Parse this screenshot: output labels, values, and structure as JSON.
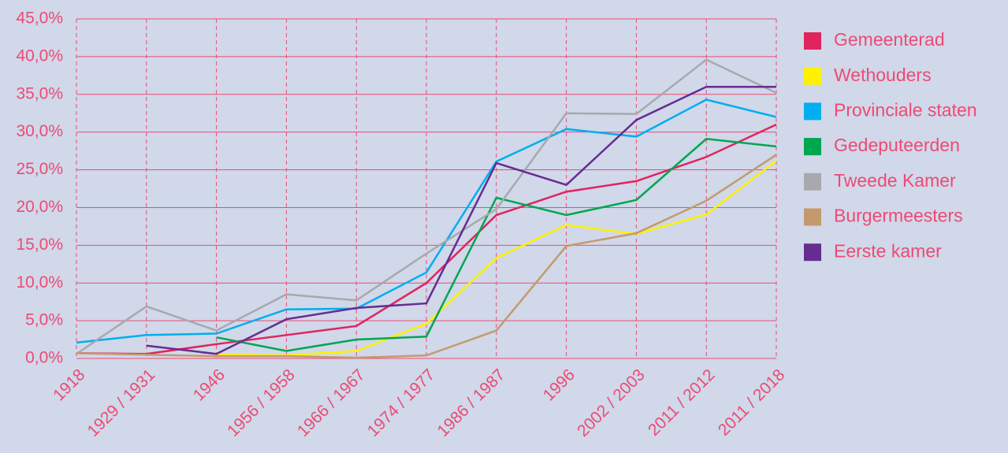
{
  "chart_data": {
    "type": "line",
    "categories": [
      "1918",
      "1929 / 1931",
      "1946",
      "1956 / 1958",
      "1966 / 1967",
      "1974 / 1977",
      "1986 / 1987",
      "1996",
      "2002 / 2003",
      "2011 / 2012",
      "2011 / 2018"
    ],
    "series": [
      {
        "name": "Gemeenterad",
        "color": "#e0245e",
        "values": [
          0.7,
          0.6,
          1.9,
          3.1,
          4.3,
          10.0,
          19.0,
          22.1,
          23.5,
          26.7,
          31.0
        ]
      },
      {
        "name": "Wethouders",
        "color": "#fff200",
        "values": [
          null,
          null,
          0.5,
          0.4,
          1.0,
          4.6,
          13.3,
          17.7,
          16.5,
          19.1,
          26.2
        ]
      },
      {
        "name": "Provinciale staten",
        "color": "#00aeef",
        "values": [
          2.1,
          3.1,
          3.3,
          6.5,
          6.6,
          11.4,
          26.1,
          30.4,
          29.4,
          34.3,
          32.0
        ]
      },
      {
        "name": "Gedeputeerden",
        "color": "#00a650",
        "values": [
          null,
          null,
          2.8,
          1.0,
          2.5,
          2.9,
          21.3,
          19.0,
          21.0,
          29.1,
          28.1
        ]
      },
      {
        "name": "Tweede Kamer",
        "color": "#a7a9ac",
        "values": [
          0.6,
          6.9,
          3.7,
          8.5,
          7.7,
          13.9,
          19.8,
          32.5,
          32.4,
          39.6,
          35.2
        ]
      },
      {
        "name": "Burgermeesters",
        "color": "#c49a6c",
        "values": [
          0.7,
          0.5,
          0.3,
          0.3,
          0.1,
          0.4,
          3.7,
          14.9,
          16.6,
          20.9,
          27.0
        ]
      },
      {
        "name": "Eerste kamer",
        "color": "#662d91",
        "values": [
          null,
          1.7,
          0.6,
          5.2,
          6.7,
          7.3,
          25.9,
          23.0,
          31.6,
          36.0,
          36.0
        ]
      }
    ],
    "ylim": [
      0,
      45
    ],
    "yticks": [
      {
        "value": 0,
        "label": "0,0%"
      },
      {
        "value": 5,
        "label": "5,0%"
      },
      {
        "value": 10,
        "label": "10,0%"
      },
      {
        "value": 15,
        "label": "15,0%"
      },
      {
        "value": 20,
        "label": "20,0%"
      },
      {
        "value": 25,
        "label": "25,0%"
      },
      {
        "value": 30,
        "label": "30,0%"
      },
      {
        "value": 35,
        "label": "35,0%"
      },
      {
        "value": 40,
        "label": "40,0%"
      },
      {
        "value": 45,
        "label": "45,0%"
      }
    ],
    "grid": true,
    "legend": "right"
  }
}
